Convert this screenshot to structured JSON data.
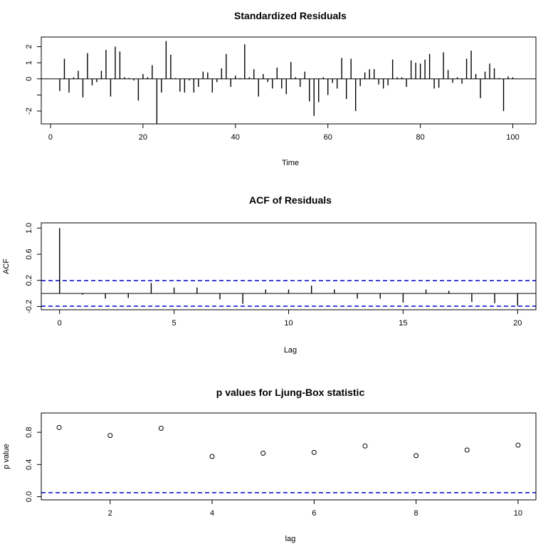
{
  "chart_data": [
    {
      "type": "bar",
      "title": "Standardized Residuals",
      "xlabel": "Time",
      "ylabel": "",
      "xlim": [
        -2,
        105
      ],
      "ylim": [
        -2.8,
        2.6
      ],
      "xticks": [
        0,
        20,
        40,
        60,
        80,
        100
      ],
      "yticks": [
        -2,
        -1,
        0,
        1,
        2
      ],
      "ytick_labels": [
        "-2",
        "",
        "0",
        "1",
        "2"
      ],
      "reference_lines": [
        {
          "y": 0,
          "style": "solid",
          "color": "#000000"
        }
      ],
      "series": [
        {
          "x": [
            1,
            2,
            3,
            4,
            5,
            6,
            7,
            8,
            9,
            10,
            11,
            12,
            13,
            14,
            15,
            16,
            17,
            18,
            19,
            20,
            21,
            22,
            23,
            24,
            25,
            26,
            27,
            28,
            29,
            30,
            31,
            32,
            33,
            34,
            35,
            36,
            37,
            38,
            39,
            40,
            41,
            42,
            43,
            44,
            45,
            46,
            47,
            48,
            49,
            50,
            51,
            52,
            53,
            54,
            55,
            56,
            57,
            58,
            59,
            60,
            61,
            62,
            63,
            64,
            65,
            66,
            67,
            68,
            69,
            70,
            71,
            72,
            73,
            74,
            75,
            76,
            77,
            78,
            79,
            80,
            81,
            82,
            83,
            84,
            85,
            86,
            87,
            88,
            89,
            90,
            91,
            92,
            93,
            94,
            95,
            96,
            97,
            98,
            99,
            100
          ],
          "values": [
            0.0,
            -0.75,
            1.25,
            -0.85,
            0.1,
            0.5,
            -1.15,
            1.6,
            -0.4,
            -0.2,
            0.5,
            1.8,
            -1.1,
            2.0,
            1.7,
            0.1,
            0.05,
            -0.1,
            -1.35,
            0.3,
            0.1,
            0.85,
            -2.8,
            -0.85,
            2.35,
            1.5,
            0.05,
            -0.8,
            -0.85,
            -0.1,
            -0.85,
            -0.5,
            0.45,
            0.4,
            -0.85,
            -0.2,
            0.65,
            1.55,
            -0.5,
            0.2,
            0.05,
            2.15,
            0.1,
            0.6,
            -1.1,
            0.3,
            -0.2,
            -0.6,
            0.7,
            -0.6,
            -0.95,
            1.05,
            0.1,
            -0.5,
            0.45,
            -1.4,
            -2.3,
            -1.45,
            0.1,
            -1.0,
            -0.25,
            -0.6,
            1.3,
            -1.25,
            1.25,
            -2.0,
            -0.45,
            0.4,
            0.6,
            0.6,
            -0.35,
            -0.6,
            -0.4,
            1.2,
            0.1,
            0.1,
            -0.5,
            1.15,
            1.0,
            0.95,
            1.2,
            1.55,
            -0.6,
            -0.55,
            1.65,
            0.55,
            -0.25,
            0.1,
            -0.3,
            1.25,
            1.75,
            0.3,
            -1.2,
            0.45,
            0.95,
            0.65,
            0.05,
            -2.0,
            0.15,
            0.1
          ],
          "color": "#000000"
        }
      ]
    },
    {
      "type": "bar",
      "title": "ACF of Residuals",
      "xlabel": "Lag",
      "ylabel": "ACF",
      "xlim": [
        -0.8,
        20.8
      ],
      "ylim": [
        -0.25,
        1.08
      ],
      "xticks": [
        0,
        5,
        10,
        15,
        20
      ],
      "yticks": [
        -0.2,
        0.2,
        0.6,
        1.0
      ],
      "ytick_labels": [
        "-0.2",
        "0.2",
        "0.6",
        "1.0"
      ],
      "reference_lines": [
        {
          "y": 0,
          "style": "solid",
          "color": "#000000"
        },
        {
          "y": 0.196,
          "style": "dashed",
          "color": "#0000CD"
        },
        {
          "y": -0.196,
          "style": "dashed",
          "color": "#0000CD"
        }
      ],
      "series": [
        {
          "x": [
            0,
            1,
            2,
            3,
            4,
            5,
            6,
            7,
            8,
            9,
            10,
            11,
            12,
            13,
            14,
            15,
            16,
            17,
            18,
            19,
            20
          ],
          "values": [
            1.0,
            -0.02,
            -0.08,
            -0.07,
            0.16,
            0.09,
            0.09,
            -0.09,
            -0.16,
            0.06,
            0.06,
            0.12,
            0.06,
            -0.08,
            -0.08,
            -0.14,
            0.06,
            0.04,
            -0.13,
            -0.15,
            -0.19
          ],
          "color": "#000000"
        }
      ]
    },
    {
      "type": "scatter",
      "title": "p values for Ljung-Box statistic",
      "xlabel": "lag",
      "ylabel": "p value",
      "xlim": [
        0.65,
        10.35
      ],
      "ylim": [
        -0.04,
        1.04
      ],
      "xticks": [
        2,
        4,
        6,
        8,
        10
      ],
      "yticks": [
        0.0,
        0.4,
        0.8
      ],
      "ytick_labels": [
        "0.0",
        "0.4",
        "0.8"
      ],
      "reference_lines": [
        {
          "y": 0.05,
          "style": "dashed",
          "color": "#0000CD"
        }
      ],
      "series": [
        {
          "x": [
            1,
            2,
            3,
            4,
            5,
            6,
            7,
            8,
            9,
            10
          ],
          "values": [
            0.86,
            0.76,
            0.85,
            0.5,
            0.54,
            0.55,
            0.63,
            0.51,
            0.58,
            0.64
          ],
          "marker": "open-circle",
          "color": "#000000"
        }
      ]
    }
  ]
}
